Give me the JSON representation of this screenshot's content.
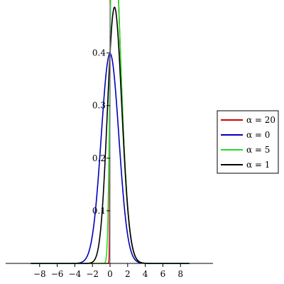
{
  "chart_data": {
    "type": "line",
    "title": "",
    "xlabel": "",
    "ylabel": "",
    "xlim": [
      -9,
      9
    ],
    "ylim": [
      0,
      0.5
    ],
    "grid": false,
    "legend_position": "right",
    "x_ticks": [
      {
        "value": -8,
        "label": "−8"
      },
      {
        "value": -6,
        "label": "−6"
      },
      {
        "value": -4,
        "label": "−4"
      },
      {
        "value": -2,
        "label": "−2"
      },
      {
        "value": 0,
        "label": "0"
      },
      {
        "value": 2,
        "label": "2"
      },
      {
        "value": 4,
        "label": "4"
      },
      {
        "value": 6,
        "label": "6"
      },
      {
        "value": 8,
        "label": "8"
      }
    ],
    "y_ticks": [
      {
        "value": 0.1,
        "label": "0.1"
      },
      {
        "value": 0.2,
        "label": "0.2"
      },
      {
        "value": 0.3,
        "label": "0.3"
      },
      {
        "value": 0.4,
        "label": "0.4"
      }
    ],
    "series": [
      {
        "name": "α = 20",
        "color": "#cc0000",
        "alpha": 20
      },
      {
        "name": "α = 0",
        "color": "#0000bb",
        "alpha": 0
      },
      {
        "name": "α = 5",
        "color": "#22dd22",
        "alpha": 5
      },
      {
        "name": "α = 1",
        "color": "#000000",
        "alpha": 1
      }
    ]
  }
}
